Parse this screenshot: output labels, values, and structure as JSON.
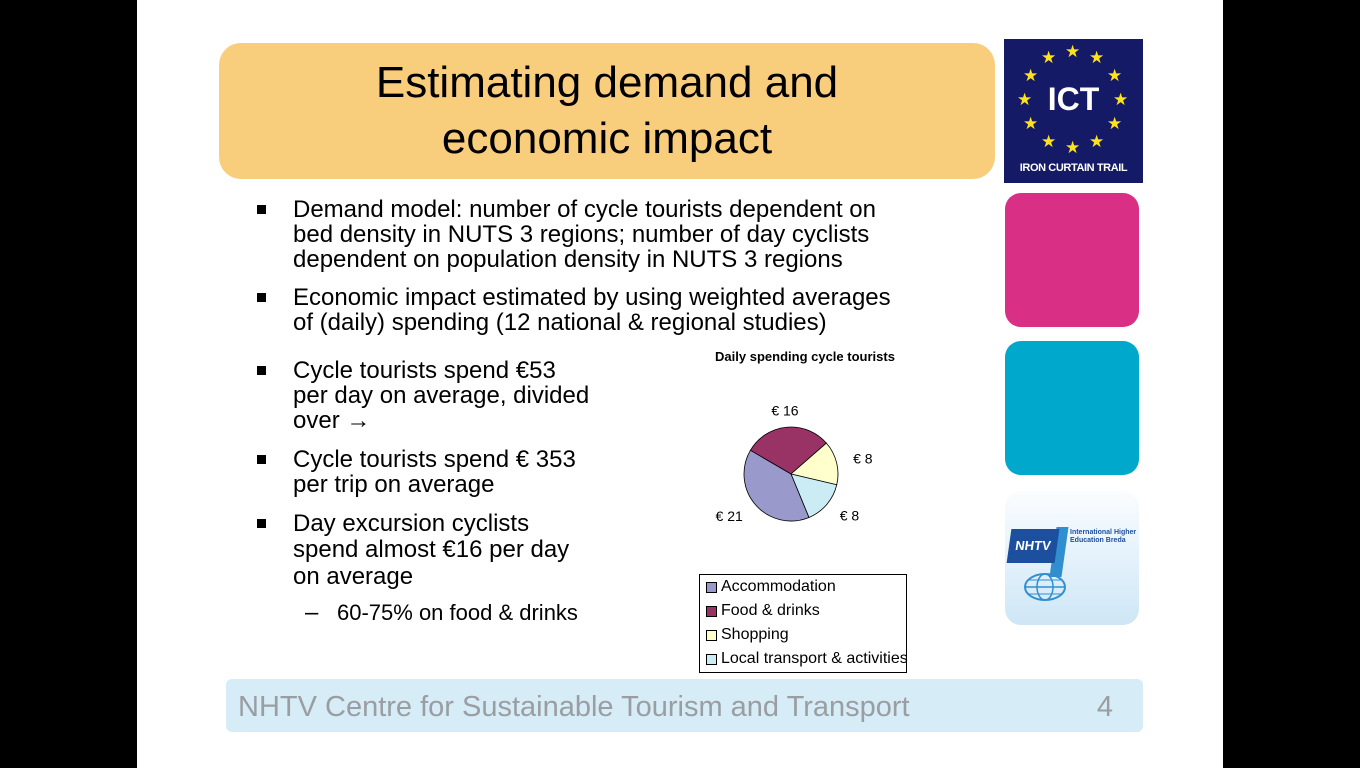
{
  "slide": {
    "title": "Estimating demand and economic impact",
    "logo_ict": {
      "text": "ICT",
      "subtitle": "IRON CURTAIN TRAIL"
    },
    "logo_nhtv": {
      "badge": "NHTV",
      "text": "International Higher Education Breda"
    },
    "bullets": [
      {
        "lines": [
          "Demand model: number of cycle tourists dependent on",
          "bed density in NUTS 3 regions; number of day cyclists",
          "dependent on population density in NUTS 3 regions"
        ]
      },
      {
        "lines": [
          "Economic impact estimated by using weighted averages",
          "of (daily) spending (12 national & regional studies)"
        ]
      },
      {
        "lines": [
          "Cycle tourists spend €53",
          "per day on average, divided",
          "over →"
        ]
      },
      {
        "lines": [
          "Cycle tourists spend € 353",
          "per trip on average"
        ]
      },
      {
        "lines": [
          "Day excursion cyclists",
          "spend almost €16 per day",
          "on average"
        ]
      }
    ],
    "sub_bullet": {
      "dash": "–",
      "text": "60-75% on food & drinks"
    },
    "footer": {
      "text": "NHTV Centre for Sustainable Tourism and Transport",
      "page_number": "4"
    }
  },
  "colors": {
    "title_bg": "#f8cd7c",
    "ict_blue": "#151a66",
    "ict_star": "#ffe21a",
    "pink": "#d92f84",
    "teal": "#00a8cc",
    "footer_bg": "#d6ecf7",
    "footer_text": "#9a9ea2"
  },
  "chart_data": {
    "type": "pie",
    "title": "Daily spending cycle tourists",
    "legend_position": "bottom",
    "series": [
      {
        "name": "Accommodation",
        "value": 21,
        "label": "€ 21",
        "color": "#9999cc"
      },
      {
        "name": "Food & drinks",
        "value": 16,
        "label": "€ 16",
        "color": "#993366"
      },
      {
        "name": "Shopping",
        "value": 8,
        "label": "€ 8",
        "color": "#ffffcc"
      },
      {
        "name": "Local transport & activities",
        "value": 8,
        "label": "€ 8",
        "color": "#ccecf5"
      }
    ]
  }
}
